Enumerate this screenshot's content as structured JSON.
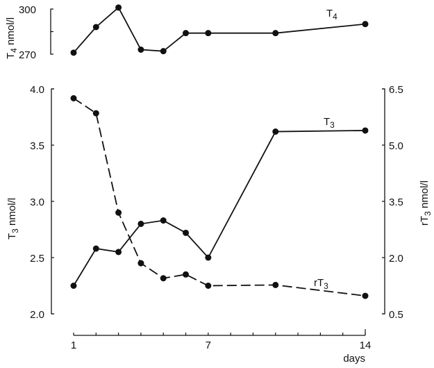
{
  "chart_data": [
    {
      "type": "line",
      "panel": "top",
      "x": [
        1,
        2,
        3,
        4,
        5,
        6,
        7,
        10,
        14
      ],
      "series": [
        {
          "name": "T4",
          "style": "solid",
          "values": [
            271,
            288,
            301,
            273,
            272,
            284,
            284,
            284,
            290
          ]
        }
      ],
      "ylabel": "T4 nmol/l",
      "ylim": [
        270,
        300
      ],
      "yticks": [
        "300",
        "270"
      ],
      "color": "#111111"
    },
    {
      "type": "line",
      "panel": "bottom",
      "x": [
        1,
        2,
        3,
        4,
        5,
        6,
        7,
        10,
        14
      ],
      "series": [
        {
          "name": "T3",
          "axis": "left",
          "style": "solid",
          "values": [
            2.25,
            2.58,
            2.55,
            2.8,
            2.83,
            2.72,
            2.5,
            3.62,
            3.63
          ]
        },
        {
          "name": "rT3",
          "axis": "right",
          "style": "dashed",
          "values": [
            6.25,
            5.85,
            3.2,
            1.85,
            1.45,
            1.55,
            1.25,
            1.27,
            0.98
          ]
        }
      ],
      "xlabel": "days",
      "xticks": [
        "1",
        "7",
        "14"
      ],
      "xlim": [
        1,
        14
      ],
      "ylabel": "T3 nmol/l",
      "ylim": [
        2.0,
        4.0
      ],
      "yticks": [
        "4.0",
        "3.5",
        "3.0",
        "2.5",
        "2.0"
      ],
      "y2label": "rT3 nmol/l",
      "y2lim": [
        0.5,
        6.5
      ],
      "y2ticks": [
        "6.5",
        "5.0",
        "3.5",
        "2.0",
        "0.5"
      ],
      "grid": false,
      "color": "#111111"
    }
  ]
}
